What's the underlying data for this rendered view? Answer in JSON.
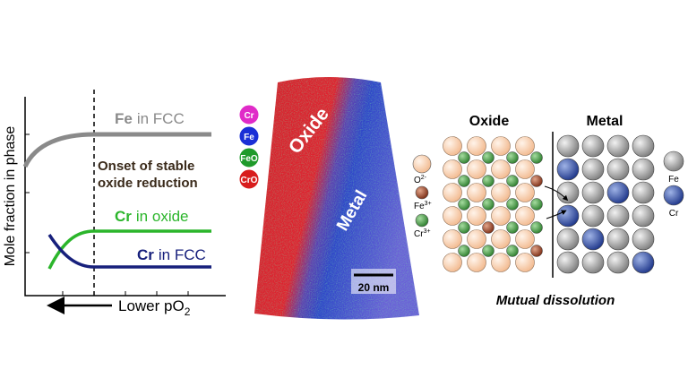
{
  "plot": {
    "y_label": "Mole fraction in phase",
    "x_label": "Lower pO",
    "x_label_sub": "2",
    "curves": [
      {
        "element": "Fe",
        "phase": "in FCC"
      },
      {
        "element": "Cr",
        "phase": "in oxide"
      },
      {
        "element": "Cr",
        "phase": "in FCC"
      }
    ],
    "annotation": [
      "Onset of stable",
      "oxide reduction"
    ]
  },
  "tomography": {
    "legend": [
      "Cr",
      "Fe",
      "FeO",
      "CrO"
    ],
    "labels": [
      "Oxide",
      "Metal"
    ],
    "scale_bar": "20 nm"
  },
  "lattice": {
    "headers": [
      "Oxide",
      "Metal"
    ],
    "ions": [
      {
        "symbol": "O",
        "charge": "2-"
      },
      {
        "symbol": "Fe",
        "charge": "3+"
      },
      {
        "symbol": "Cr",
        "charge": "3+"
      }
    ],
    "atoms": [
      "Fe",
      "Cr"
    ],
    "caption": "Mutual dissolution"
  }
}
